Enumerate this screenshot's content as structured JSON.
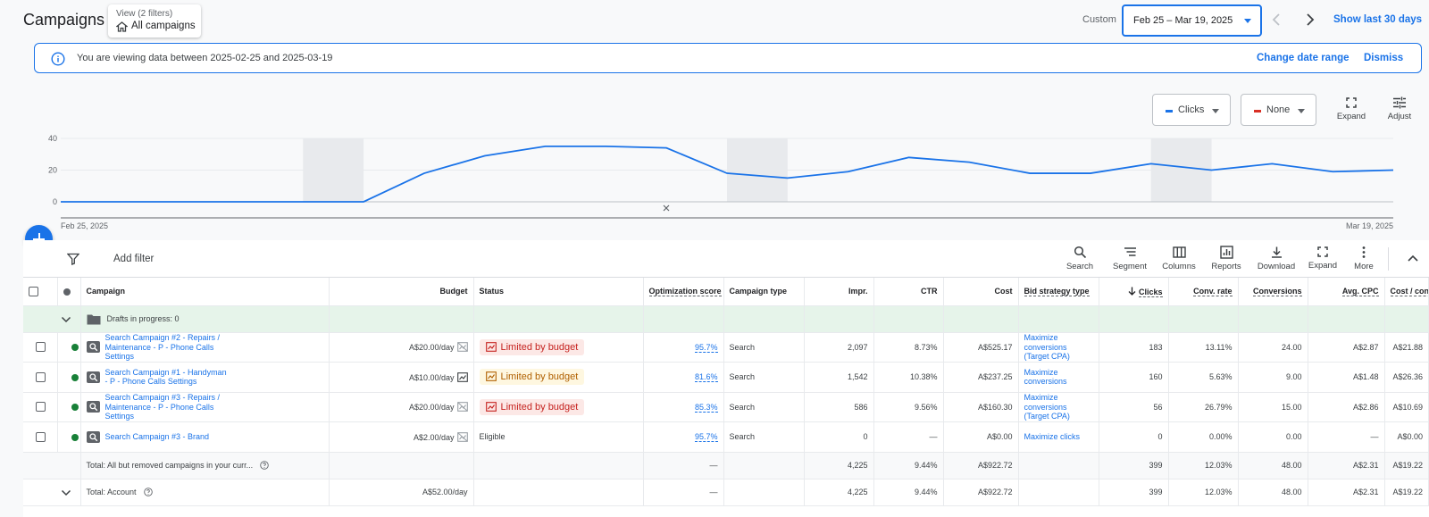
{
  "header": {
    "title": "Campaigns",
    "view_caption": "View (2 filters)",
    "view_value": "All campaigns",
    "custom_label": "Custom",
    "date_range": "Feb 25 – Mar 19, 2025",
    "show_last_30": "Show last 30 days"
  },
  "banner": {
    "text": "You are viewing data between 2025-02-25 and 2025-03-19",
    "change": "Change date range",
    "dismiss": "Dismiss"
  },
  "chart_controls": {
    "metric1": "Clicks",
    "metric1_color": "#1a73e8",
    "metric2": "None",
    "metric2_color": "#d93025",
    "expand": "Expand",
    "adjust": "Adjust"
  },
  "chart_data": {
    "type": "line",
    "x_start_label": "Feb 25, 2025",
    "x_end_label": "Mar 19, 2025",
    "yticks": [
      "40",
      "20",
      "0"
    ],
    "ylim": [
      0,
      40
    ],
    "series": [
      {
        "values": [
          0,
          0,
          0,
          0,
          0,
          0,
          18,
          29,
          35,
          35,
          34,
          18,
          15,
          19,
          28,
          25,
          18,
          18,
          24,
          20,
          24,
          19,
          20
        ]
      }
    ],
    "shaded_ranges": [
      [
        4,
        5
      ],
      [
        11,
        12
      ],
      [
        18,
        19
      ]
    ]
  },
  "table_toolbar": {
    "add_filter": "Add filter",
    "search": "Search",
    "segment": "Segment",
    "columns": "Columns",
    "reports": "Reports",
    "download": "Download",
    "expand": "Expand",
    "more": "More"
  },
  "columns": {
    "campaign": "Campaign",
    "budget": "Budget",
    "status": "Status",
    "opt": "Optimization score",
    "type": "Campaign type",
    "impr": "Impr.",
    "ctr": "CTR",
    "cost": "Cost",
    "bid": "Bid strategy type",
    "clicks": "Clicks",
    "convrate": "Conv. rate",
    "conversions": "Conversions",
    "avgcpc": "Avg. CPC",
    "costconv": "Cost / conv."
  },
  "drafts": "Drafts in progress: 0",
  "rows": [
    {
      "name": "Search Campaign #2 - Repairs / Maintenance - P - Phone Calls Settings",
      "budget": "A$20.00/day",
      "status": "Limited by budget",
      "opt": "95.7%",
      "type": "Search",
      "impr": "2,097",
      "ctr": "8.73%",
      "cost": "A$525.17",
      "bid": "Maximize conversions (Target CPA)",
      "clicks": "183",
      "convrate": "13.11%",
      "conversions": "24.00",
      "avgcpc": "A$2.87",
      "costconv": "A$21.88"
    },
    {
      "name": "Search Campaign #1 - Handyman - P - Phone Calls Settings",
      "budget": "A$10.00/day",
      "status": "Limited by budget",
      "opt": "81.6%",
      "type": "Search",
      "impr": "1,542",
      "ctr": "10.38%",
      "cost": "A$237.25",
      "bid": "Maximize conversions",
      "clicks": "160",
      "convrate": "5.63%",
      "conversions": "9.00",
      "avgcpc": "A$1.48",
      "costconv": "A$26.36"
    },
    {
      "name": "Search Campaign #3 - Repairs / Maintenance - P - Phone Calls Settings",
      "budget": "A$20.00/day",
      "status": "Limited by budget",
      "opt": "85.3%",
      "type": "Search",
      "impr": "586",
      "ctr": "9.56%",
      "cost": "A$160.30",
      "bid": "Maximize conversions (Target CPA)",
      "clicks": "56",
      "convrate": "26.79%",
      "conversions": "15.00",
      "avgcpc": "A$2.86",
      "costconv": "A$10.69"
    },
    {
      "name": "Search Campaign #3 - Brand",
      "budget": "A$2.00/day",
      "status": "Eligible",
      "opt": "95.7%",
      "type": "Search",
      "impr": "0",
      "ctr": "—",
      "cost": "A$0.00",
      "bid": "Maximize clicks",
      "clicks": "0",
      "convrate": "0.00%",
      "conversions": "0.00",
      "avgcpc": "—",
      "costconv": "A$0.00"
    }
  ],
  "total1": {
    "label": "Total: All but removed campaigns in your curr...",
    "opt": "—",
    "impr": "4,225",
    "ctr": "9.44%",
    "cost": "A$922.72",
    "clicks": "399",
    "convrate": "12.03%",
    "conversions": "48.00",
    "avgcpc": "A$2.31",
    "costconv": "A$19.22"
  },
  "total2": {
    "label": "Total: Account",
    "budget": "A$52.00/day",
    "opt": "—",
    "impr": "4,225",
    "ctr": "9.44%",
    "cost": "A$922.72",
    "clicks": "399",
    "convrate": "12.03%",
    "conversions": "48.00",
    "avgcpc": "A$2.31",
    "costconv": "A$19.22"
  }
}
